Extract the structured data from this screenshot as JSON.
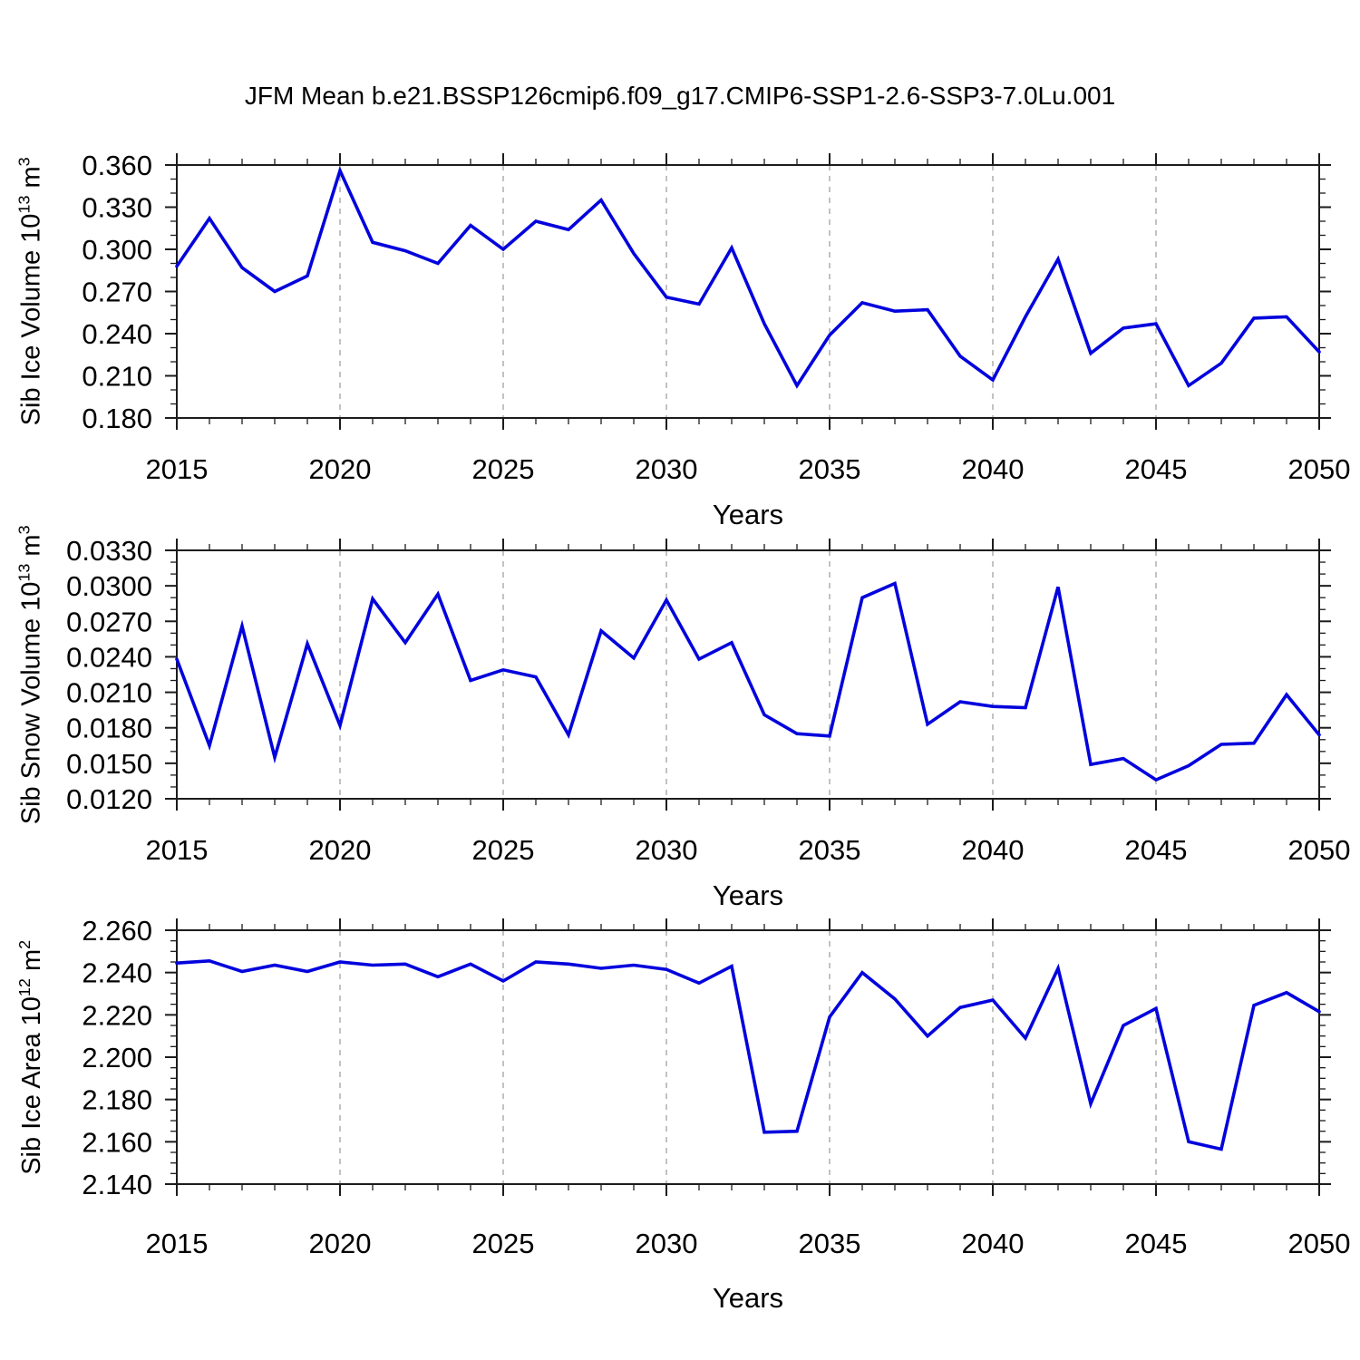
{
  "title": "JFM Mean b.e21.BSSP126cmip6.f09_g17.CMIP6-SSP1-2.6-SSP3-7.0Lu.001",
  "colors": {
    "line": "#0202dd",
    "grid": "#a8a8a8",
    "frame": "#1c1c1c",
    "background": "#ffffff"
  },
  "x_axis": {
    "label": "Years",
    "min": 2015,
    "max": 2050,
    "major_step": 5,
    "minor_step": 1,
    "tick_labels": [
      "2015",
      "2020",
      "2025",
      "2030",
      "2035",
      "2040",
      "2045",
      "2050"
    ],
    "gridline_years": [
      2020,
      2025,
      2030,
      2035,
      2040,
      2045
    ]
  },
  "years": [
    2015,
    2016,
    2017,
    2018,
    2019,
    2020,
    2021,
    2022,
    2023,
    2024,
    2025,
    2026,
    2027,
    2028,
    2029,
    2030,
    2031,
    2032,
    2033,
    2034,
    2035,
    2036,
    2037,
    2038,
    2039,
    2040,
    2041,
    2042,
    2043,
    2044,
    2045,
    2046,
    2047,
    2048,
    2049,
    2050
  ],
  "chart_data": [
    {
      "type": "line",
      "name": "sib-ice-volume",
      "ylabel": "Sib Ice Volume 10^13 m^3",
      "ylabel_parts": [
        {
          "t": "Sib Ice Volume 10"
        },
        {
          "t": "13",
          "sup": true
        },
        {
          "t": " m"
        },
        {
          "t": "3",
          "sup": true
        }
      ],
      "xlabel": "Years",
      "ylim": [
        0.18,
        0.36
      ],
      "ytick_step": 0.03,
      "yminor_step": 0.01,
      "ytick_labels": [
        "0.180",
        "0.210",
        "0.240",
        "0.270",
        "0.300",
        "0.330",
        "0.360"
      ],
      "values": [
        0.288,
        0.322,
        0.287,
        0.27,
        0.281,
        0.356,
        0.305,
        0.299,
        0.29,
        0.317,
        0.3,
        0.32,
        0.314,
        0.335,
        0.297,
        0.266,
        0.261,
        0.301,
        0.247,
        0.203,
        0.239,
        0.262,
        0.256,
        0.257,
        0.224,
        0.207,
        0.252,
        0.293,
        0.226,
        0.244,
        0.247,
        0.203,
        0.219,
        0.251,
        0.252,
        0.227
      ]
    },
    {
      "type": "line",
      "name": "sib-snow-volume",
      "ylabel": "Sib Snow Volume 10^13 m^3",
      "ylabel_parts": [
        {
          "t": "Sib Snow Volume 10"
        },
        {
          "t": "13",
          "sup": true
        },
        {
          "t": " m"
        },
        {
          "t": "3",
          "sup": true
        }
      ],
      "xlabel": "Years",
      "ylim": [
        0.012,
        0.033
      ],
      "ytick_step": 0.003,
      "yminor_step": 0.001,
      "ytick_labels": [
        "0.0120",
        "0.0150",
        "0.0180",
        "0.0210",
        "0.0240",
        "0.0270",
        "0.0300",
        "0.0330"
      ],
      "values": [
        0.0238,
        0.0165,
        0.0266,
        0.0155,
        0.0251,
        0.0182,
        0.0289,
        0.0252,
        0.0293,
        0.022,
        0.0229,
        0.0223,
        0.0174,
        0.0262,
        0.0239,
        0.0288,
        0.0238,
        0.0252,
        0.0191,
        0.0175,
        0.0173,
        0.029,
        0.0302,
        0.0183,
        0.0202,
        0.0198,
        0.0197,
        0.0299,
        0.0149,
        0.0154,
        0.0136,
        0.0148,
        0.0166,
        0.0167,
        0.0208,
        0.0174
      ]
    },
    {
      "type": "line",
      "name": "sib-ice-area",
      "ylabel": "Sib Ice Area 10^12 m^2",
      "ylabel_parts": [
        {
          "t": "Sib Ice Area 10"
        },
        {
          "t": "12",
          "sup": true
        },
        {
          "t": " m"
        },
        {
          "t": "2",
          "sup": true
        }
      ],
      "xlabel": "Years",
      "ylim": [
        2.14,
        2.26
      ],
      "ytick_step": 0.02,
      "yminor_step": 0.005,
      "ytick_labels": [
        "2.140",
        "2.160",
        "2.180",
        "2.200",
        "2.220",
        "2.240",
        "2.260"
      ],
      "values": [
        2.2445,
        2.2455,
        2.2405,
        2.2435,
        2.2405,
        2.245,
        2.2435,
        2.244,
        2.238,
        2.244,
        2.236,
        2.245,
        2.244,
        2.242,
        2.2435,
        2.2415,
        2.235,
        2.243,
        2.1645,
        2.165,
        2.219,
        2.24,
        2.2275,
        2.21,
        2.2235,
        2.227,
        2.209,
        2.242,
        2.178,
        2.215,
        2.223,
        2.16,
        2.1565,
        2.2245,
        2.2305,
        2.2215
      ]
    }
  ]
}
